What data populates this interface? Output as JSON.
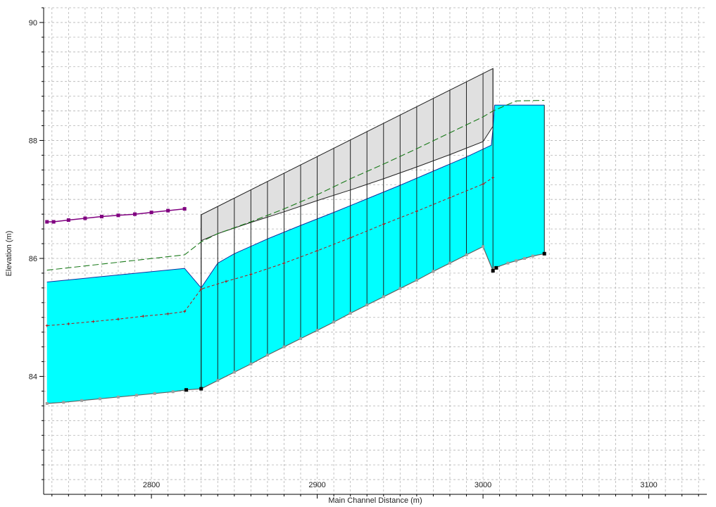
{
  "chart_data": {
    "type": "area",
    "title": "",
    "xlabel": "Main Channel Distance (m)",
    "ylabel": "Elevation (m)",
    "xlim": [
      2735,
      3135
    ],
    "ylim": [
      82.0,
      90.25
    ],
    "x_ticks": [
      2800,
      2900,
      3000,
      3100
    ],
    "y_ticks": [
      84,
      86,
      88,
      90
    ],
    "x_tick_labels": [
      "2800",
      "2900",
      "3000",
      "3100"
    ],
    "y_tick_labels": [
      "84",
      "86",
      "88",
      "90"
    ],
    "grid": true,
    "legend": "none",
    "colors": {
      "water": "#00ffff",
      "ground_marker": "#a0a0a0",
      "bank_marker": "#000000",
      "energy_grade": "#1a7a1a",
      "critical_depth": "#b01818",
      "left_levee": "#800080",
      "culvert_fill": "#e0e0e0",
      "grid": "#b4b4b4"
    },
    "series": [
      {
        "key": "ground",
        "x": [
          2737,
          2747,
          2758,
          2769,
          2780,
          2791,
          2802,
          2813,
          2821,
          2830,
          2840,
          2850,
          2860,
          2870,
          2880,
          2890,
          2900,
          2910,
          2920,
          2930,
          2940,
          2950,
          2960,
          2970,
          2980,
          2990,
          3000,
          3006,
          3007,
          3015,
          3020,
          3025,
          3030,
          3037
        ],
        "y": [
          83.54,
          83.56,
          83.59,
          83.62,
          83.65,
          83.68,
          83.71,
          83.74,
          83.77,
          83.79,
          83.93,
          84.07,
          84.21,
          84.36,
          84.5,
          84.64,
          84.78,
          84.92,
          85.07,
          85.21,
          85.35,
          85.49,
          85.63,
          85.78,
          85.92,
          86.06,
          86.2,
          85.79,
          85.84,
          85.92,
          85.96,
          86.0,
          86.04,
          86.08
        ]
      },
      {
        "key": "water_surface",
        "x": [
          2737,
          2820,
          2830,
          2840,
          2850,
          2870,
          2890,
          2910,
          2930,
          2950,
          2970,
          2990,
          3005,
          3006,
          3007,
          3037
        ],
        "y": [
          85.6,
          85.83,
          85.5,
          85.92,
          86.08,
          86.33,
          86.56,
          86.78,
          87.01,
          87.24,
          87.48,
          87.72,
          87.92,
          88.2,
          88.6,
          88.6
        ]
      },
      {
        "key": "energy_grade",
        "x": [
          2737,
          2820,
          2830,
          2840,
          2860,
          2880,
          2900,
          2920,
          2940,
          2960,
          2980,
          3000,
          3006,
          3020,
          3037
        ],
        "y": [
          85.8,
          86.06,
          86.28,
          86.42,
          86.62,
          86.84,
          87.08,
          87.35,
          87.6,
          87.86,
          88.13,
          88.4,
          88.5,
          88.67,
          88.68
        ]
      },
      {
        "key": "critical_depth",
        "x": [
          2737,
          2750,
          2765,
          2780,
          2795,
          2810,
          2820,
          2830,
          2845,
          2860,
          2880,
          2900,
          2920,
          2940,
          2960,
          2980,
          3000,
          3006
        ],
        "y": [
          84.86,
          84.89,
          84.93,
          84.97,
          85.02,
          85.06,
          85.1,
          85.48,
          85.61,
          85.73,
          85.92,
          86.13,
          86.35,
          86.58,
          86.8,
          87.03,
          87.26,
          87.37
        ]
      },
      {
        "key": "left_levee",
        "x": [
          2737,
          2741,
          2750,
          2760,
          2770,
          2780,
          2790,
          2800,
          2810,
          2820
        ],
        "y": [
          86.62,
          86.62,
          86.65,
          86.68,
          86.71,
          86.73,
          86.75,
          86.78,
          86.81,
          86.84
        ]
      },
      {
        "key": "culvert_top",
        "x": [
          2830,
          3006
        ],
        "y": [
          86.74,
          89.22
        ]
      },
      {
        "key": "culvert_inside",
        "x": [
          2830,
          2840,
          2860,
          2880,
          2900,
          2920,
          2940,
          2960,
          2980,
          3000,
          3006
        ],
        "y": [
          86.3,
          86.42,
          86.61,
          86.79,
          86.98,
          87.16,
          87.35,
          87.55,
          87.76,
          87.98,
          88.24
        ]
      }
    ],
    "bank_stations": {
      "x": [
        2821,
        2830,
        3006,
        3008,
        3037
      ],
      "y": [
        83.77,
        83.79,
        85.79,
        85.84,
        86.08
      ]
    },
    "culvert_barrel_x": [
      2830,
      2840,
      2850,
      2860,
      2870,
      2880,
      2890,
      2900,
      2910,
      2920,
      2930,
      2940,
      2950,
      2960,
      2970,
      2980,
      2990,
      3000
    ]
  }
}
